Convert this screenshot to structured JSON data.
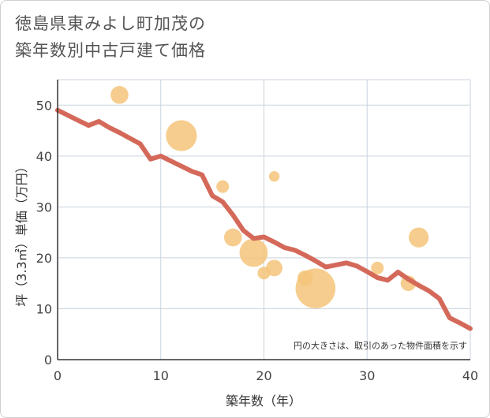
{
  "title_lines": [
    "徳島県東みよし町加茂の",
    "築年数別中古戸建て価格"
  ],
  "colors": {
    "line": "#d4695a",
    "bubble": "#f5c47a",
    "grid": "#c9d3dd",
    "axis": "#333333",
    "plot_bg": "#ffffff"
  },
  "chart_data": {
    "type": "scatter",
    "title": "徳島県東みよし町加茂の 築年数別中古戸建て価格",
    "xlabel": "築年数（年）",
    "ylabel": "坪（3.3㎡）単価（万円）",
    "xlim": [
      0,
      40
    ],
    "ylim": [
      0,
      55
    ],
    "xticks": [
      0,
      10,
      20,
      30,
      40
    ],
    "yticks": [
      0,
      10,
      20,
      30,
      40,
      50
    ],
    "grid": true,
    "annotation": "円の大きさは、取引のあった物件面積を示す",
    "bubbles": [
      {
        "x": 6,
        "y": 52,
        "size": 2
      },
      {
        "x": 12,
        "y": 44,
        "size": 6
      },
      {
        "x": 16,
        "y": 34,
        "size": 1
      },
      {
        "x": 17,
        "y": 24,
        "size": 2
      },
      {
        "x": 19,
        "y": 21,
        "size": 5
      },
      {
        "x": 20,
        "y": 17,
        "size": 1
      },
      {
        "x": 21,
        "y": 36,
        "size": 0.7
      },
      {
        "x": 21,
        "y": 18,
        "size": 1.7
      },
      {
        "x": 24,
        "y": 16,
        "size": 1.5
      },
      {
        "x": 25,
        "y": 14,
        "size": 10
      },
      {
        "x": 31,
        "y": 18,
        "size": 1
      },
      {
        "x": 34,
        "y": 15,
        "size": 1.5
      },
      {
        "x": 35,
        "y": 24,
        "size": 2.5
      }
    ],
    "trend_line": {
      "x": [
        0,
        1,
        2,
        3,
        4,
        5,
        6,
        7,
        8,
        9,
        10,
        11,
        12,
        13,
        14,
        15,
        16,
        17,
        18,
        19,
        20,
        21,
        22,
        23,
        24,
        25,
        26,
        27,
        28,
        29,
        30,
        31,
        32,
        33,
        34,
        35,
        36,
        37,
        38,
        39,
        40
      ],
      "y": [
        49,
        48,
        47,
        46,
        46.8,
        45.6,
        44.6,
        43.5,
        42.4,
        39.4,
        40,
        39,
        38,
        37,
        36.3,
        32.2,
        31,
        28.4,
        25.4,
        23.8,
        24.1,
        23.1,
        22,
        21.5,
        20.5,
        19.4,
        18.2,
        18.6,
        19,
        18.4,
        17.3,
        16.1,
        15.6,
        17.2,
        15.8,
        14.6,
        13.5,
        12,
        8.2,
        7.2,
        6.1
      ]
    }
  }
}
